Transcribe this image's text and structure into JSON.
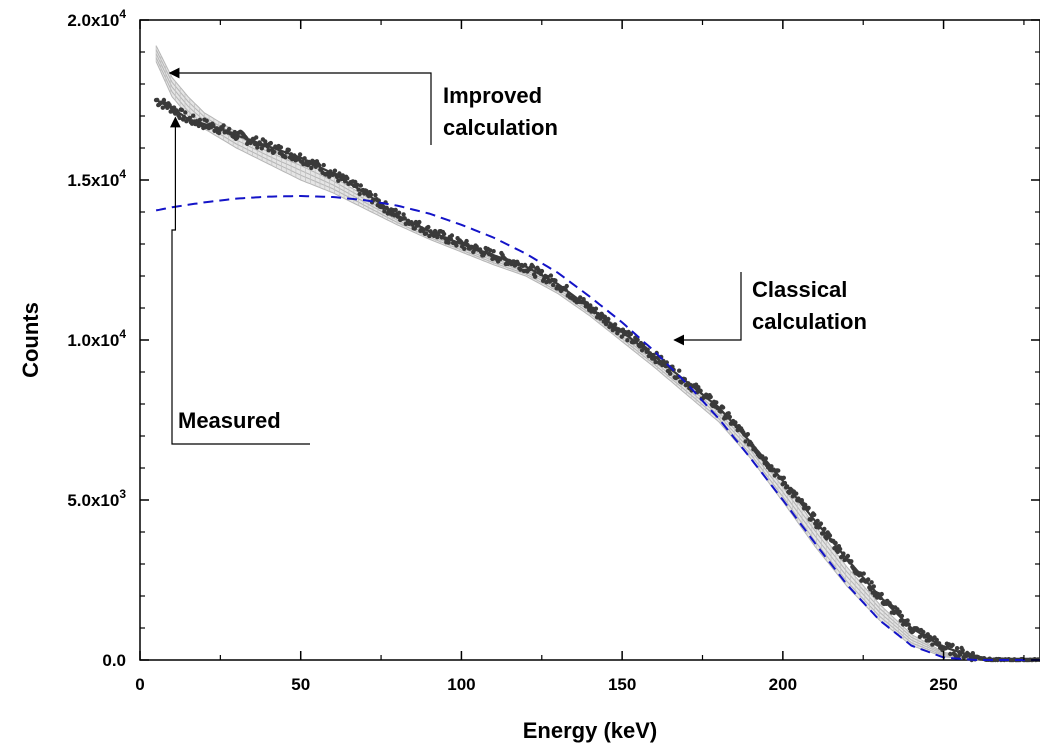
{
  "chart_data": {
    "type": "line",
    "xlabel": "Energy (keV)",
    "ylabel": "Counts",
    "xlim": [
      0,
      280
    ],
    "ylim": [
      0,
      20000
    ],
    "x_ticks": [
      {
        "value": 0,
        "label": "0"
      },
      {
        "value": 50,
        "label": "50"
      },
      {
        "value": 100,
        "label": "100"
      },
      {
        "value": 150,
        "label": "150"
      },
      {
        "value": 200,
        "label": "200"
      },
      {
        "value": 250,
        "label": "250"
      }
    ],
    "y_ticks": [
      {
        "value": 0,
        "mantissa": "0.0",
        "exponent": ""
      },
      {
        "value": 5000,
        "mantissa": "5.0x10",
        "exponent": "3"
      },
      {
        "value": 10000,
        "mantissa": "1.0x10",
        "exponent": "4"
      },
      {
        "value": 15000,
        "mantissa": "1.5x10",
        "exponent": "4"
      },
      {
        "value": 20000,
        "mantissa": "2.0x10",
        "exponent": "4"
      }
    ],
    "grid": false,
    "series": [
      {
        "name": "Measured",
        "style": "dark-points",
        "color": "#3a3a3a",
        "x": [
          5,
          10,
          15,
          20,
          25,
          30,
          40,
          50,
          60,
          70,
          80,
          90,
          100,
          110,
          120,
          130,
          140,
          150,
          160,
          170,
          180,
          190,
          200,
          210,
          220,
          230,
          240,
          250,
          260,
          265,
          270,
          280
        ],
        "y": [
          17500,
          17250,
          16900,
          16750,
          16600,
          16400,
          16050,
          15700,
          15200,
          14600,
          13900,
          13400,
          13000,
          12650,
          12300,
          11750,
          11000,
          10250,
          9500,
          8700,
          7900,
          6800,
          5600,
          4350,
          3150,
          2000,
          1000,
          400,
          100,
          0,
          0,
          0
        ]
      },
      {
        "name": "Improved calculation",
        "style": "gray-band",
        "color": "#b5b5b5",
        "x": [
          5,
          10,
          15,
          20,
          30,
          40,
          50,
          60,
          70,
          80,
          90,
          100,
          110,
          120,
          130,
          140,
          150,
          160,
          170,
          180,
          190,
          200,
          210,
          220,
          230,
          240,
          250,
          260,
          270,
          280
        ],
        "y_upper": [
          19200,
          18200,
          17600,
          17100,
          16500,
          16000,
          15600,
          15100,
          14500,
          13900,
          13400,
          13000,
          12600,
          12250,
          11750,
          11050,
          10300,
          9500,
          8700,
          7850,
          6800,
          5550,
          4200,
          2900,
          1750,
          800,
          250,
          30,
          0,
          0
        ],
        "y_lower": [
          18700,
          17600,
          17000,
          16600,
          16000,
          15500,
          15000,
          14600,
          14100,
          13600,
          13150,
          12750,
          12350,
          12000,
          11450,
          10750,
          9950,
          9150,
          8300,
          7450,
          6300,
          4950,
          3550,
          2300,
          1250,
          450,
          100,
          0,
          0,
          0
        ]
      },
      {
        "name": "Classical calculation",
        "style": "dashed",
        "color": "#1414c8",
        "x": [
          5,
          10,
          20,
          30,
          40,
          50,
          60,
          70,
          80,
          90,
          100,
          110,
          120,
          130,
          140,
          150,
          160,
          170,
          180,
          190,
          200,
          210,
          220,
          230,
          240,
          250,
          260,
          270,
          280
        ],
        "y": [
          14050,
          14150,
          14300,
          14420,
          14480,
          14500,
          14470,
          14370,
          14200,
          13950,
          13600,
          13200,
          12700,
          12100,
          11350,
          10550,
          9650,
          8650,
          7550,
          6300,
          5000,
          3650,
          2350,
          1250,
          450,
          80,
          0,
          0,
          0
        ]
      }
    ],
    "annotations": [
      {
        "lines": [
          "Improved",
          "calculation"
        ],
        "points_to": [
          8,
          18300
        ]
      },
      {
        "lines": [
          "Classical",
          "calculation"
        ],
        "points_to": [
          165,
          10000
        ]
      },
      {
        "lines": [
          "Measured"
        ],
        "points_to": [
          11,
          17200
        ]
      }
    ]
  }
}
